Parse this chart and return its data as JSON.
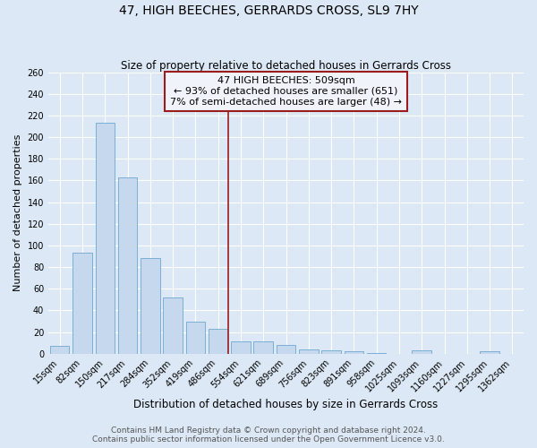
{
  "title": "47, HIGH BEECHES, GERRARDS CROSS, SL9 7HY",
  "subtitle": "Size of property relative to detached houses in Gerrards Cross",
  "xlabel": "Distribution of detached houses by size in Gerrards Cross",
  "ylabel": "Number of detached properties",
  "categories": [
    "15sqm",
    "82sqm",
    "150sqm",
    "217sqm",
    "284sqm",
    "352sqm",
    "419sqm",
    "486sqm",
    "554sqm",
    "621sqm",
    "689sqm",
    "756sqm",
    "823sqm",
    "891sqm",
    "958sqm",
    "1025sqm",
    "1093sqm",
    "1160sqm",
    "1227sqm",
    "1295sqm",
    "1362sqm"
  ],
  "values": [
    7,
    93,
    213,
    163,
    88,
    52,
    30,
    23,
    11,
    11,
    8,
    4,
    3,
    2,
    1,
    0,
    3,
    0,
    0,
    2,
    0
  ],
  "bar_color": "#c5d8ee",
  "bar_edge_color": "#7aafd4",
  "property_line_label": "47 HIGH BEECHES: 509sqm",
  "annotation_line1": "← 93% of detached houses are smaller (651)",
  "annotation_line2": "7% of semi-detached houses are larger (48) →",
  "vline_color": "#9b1c1c",
  "vline_x": 7.45,
  "annotation_box_facecolor": "#f0f4fa",
  "annotation_box_edgecolor": "#9b1c1c",
  "ylim": [
    0,
    260
  ],
  "yticks": [
    0,
    20,
    40,
    60,
    80,
    100,
    120,
    140,
    160,
    180,
    200,
    220,
    240,
    260
  ],
  "footer_line1": "Contains HM Land Registry data © Crown copyright and database right 2024.",
  "footer_line2": "Contains public sector information licensed under the Open Government Licence v3.0.",
  "bg_color": "#dce8f5",
  "plot_bg_color": "#dce8f5",
  "title_fontsize": 10,
  "subtitle_fontsize": 8.5,
  "xlabel_fontsize": 8.5,
  "ylabel_fontsize": 8,
  "tick_fontsize": 7,
  "footer_fontsize": 6.5,
  "annotation_fontsize": 8
}
